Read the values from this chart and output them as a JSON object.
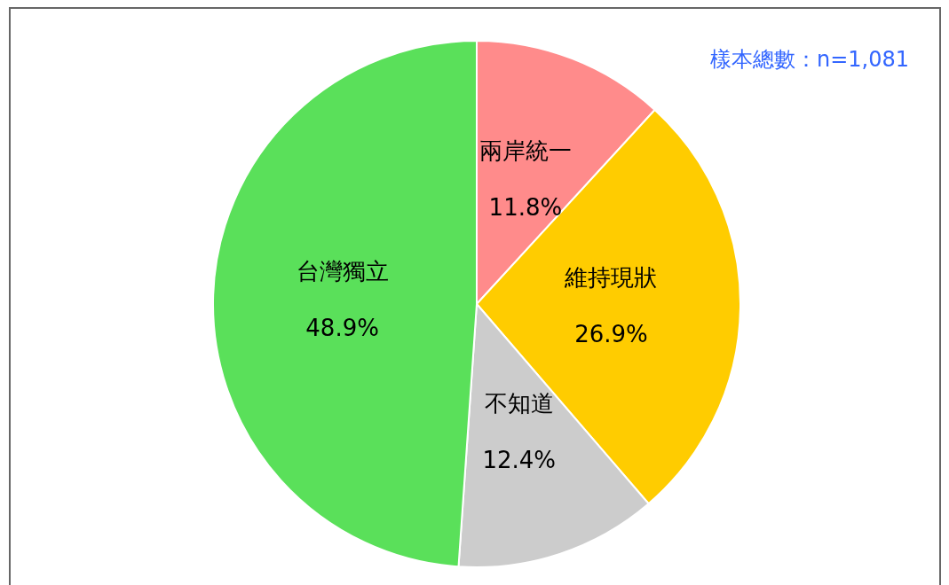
{
  "chart_data": {
    "type": "pie",
    "categories": [
      "兩岸統一",
      "維持現狀",
      "不知道",
      "台灣獨立"
    ],
    "values": [
      11.8,
      26.9,
      12.4,
      48.9
    ],
    "colors": [
      "#ff8b8b",
      "#ffcc00",
      "#cccccc",
      "#5ae05a"
    ],
    "value_labels": [
      "11.8%",
      "26.9%",
      "12.4%",
      "48.9%"
    ],
    "legend": false,
    "annotations": [
      "樣本總數：n=1,081"
    ]
  }
}
